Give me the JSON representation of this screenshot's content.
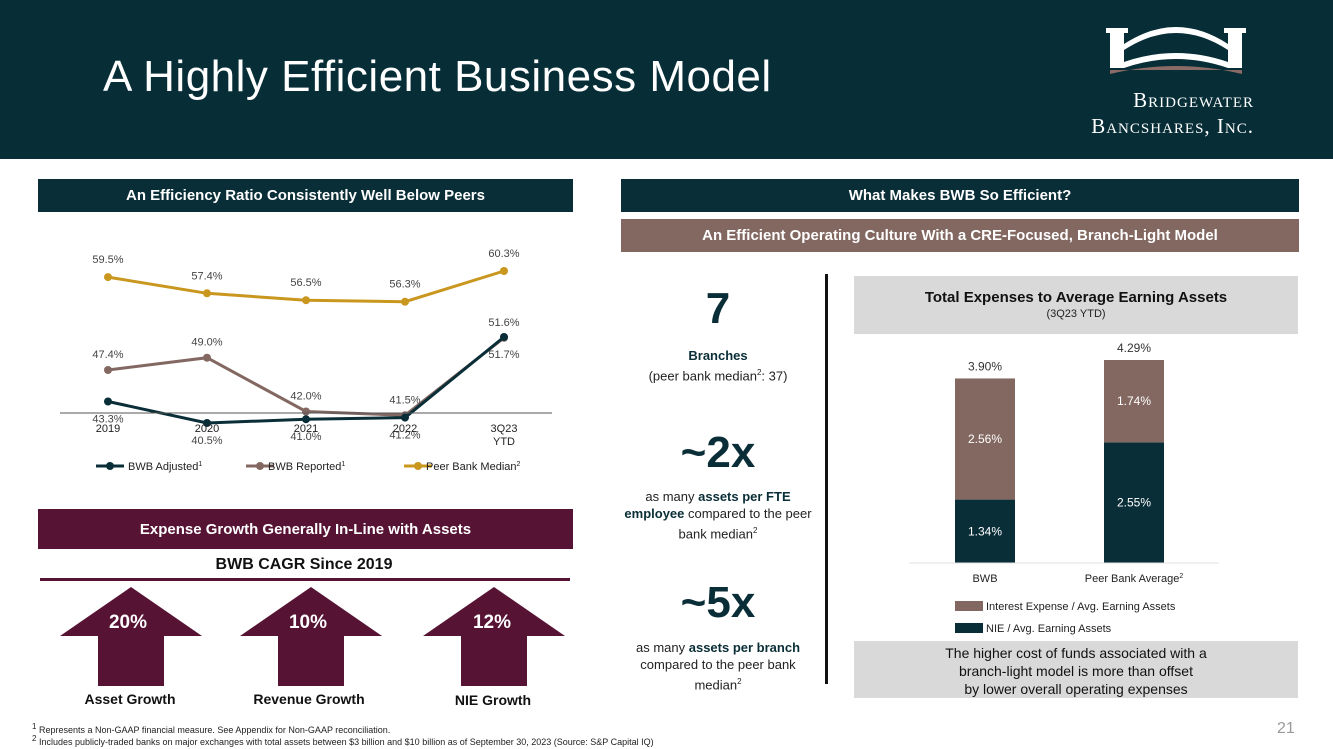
{
  "header": {
    "title": "A Highly Efficient Business Model",
    "logo_line1": "Bridgewater",
    "logo_line2": "Bancshares, Inc."
  },
  "left": {
    "efficiency_banner": "An Efficiency Ratio Consistently Well Below Peers",
    "expense_banner": "Expense Growth Generally In-Line with Assets",
    "cagr_title": "BWB CAGR Since 2019",
    "arrows": [
      {
        "pct": "20%",
        "label": "Asset Growth"
      },
      {
        "pct": "10%",
        "label": "Revenue Growth"
      },
      {
        "pct": "12%",
        "label": "NIE Growth"
      }
    ]
  },
  "right": {
    "main_banner": "What Makes BWB So Efficient?",
    "sub_banner": "An Efficient Operating Culture With a CRE-Focused, Branch-Light Model",
    "stats": [
      {
        "big": "7",
        "line1_bold": "Branches",
        "line2": "(peer bank median",
        "line2_sup": "2",
        "line2_end": ": 37)"
      },
      {
        "big": "~2x",
        "pre": "as many ",
        "bold": "assets per FTE employee",
        "post": " compared to the peer bank median",
        "sup": "2"
      },
      {
        "big": "~5x",
        "pre": "as many ",
        "bold": "assets per branch",
        "post": " compared to the peer bank median",
        "sup": "2"
      }
    ],
    "note": [
      "The higher cost of funds associated with a",
      "branch-light model is more than offset",
      "by lower overall operating expenses"
    ]
  },
  "footnotes": {
    "f1_sup": "1",
    "f1": " Represents a Non-GAAP financial measure. See Appendix for Non-GAAP reconciliation.",
    "f2_sup": "2",
    "f2": " Includes publicly-traded banks on major exchanges with total assets between $3 billion and $10 billion as of September 30, 2023 (Source: S&P Capital IQ)"
  },
  "page_number": "21",
  "colors": {
    "teal": "#0a2e37",
    "mauve": "#836862",
    "gold": "#c9961e",
    "maroon": "#561334"
  },
  "chart_data": [
    {
      "type": "line",
      "title": "An Efficiency Ratio Consistently Well Below Peers",
      "categories": [
        "2019",
        "2020",
        "2021",
        "2022",
        "3Q23 YTD"
      ],
      "unit": "%",
      "ylim": [
        38,
        62
      ],
      "series": [
        {
          "name": "BWB Adjusted",
          "legend_sup": "1",
          "color": "#0a2e37",
          "values": [
            43.3,
            40.5,
            41.0,
            41.2,
            51.7
          ],
          "labels": [
            "43.3%",
            "40.5%",
            "41.0%",
            "41.2%",
            "51.7%"
          ]
        },
        {
          "name": "BWB Reported",
          "legend_sup": "1",
          "color": "#836862",
          "values": [
            47.4,
            49.0,
            42.0,
            41.5,
            51.6
          ],
          "labels": [
            "47.4%",
            "49.0%",
            "42.0%",
            "41.5%",
            "51.6%"
          ]
        },
        {
          "name": "Peer Bank Median",
          "legend_sup": "2",
          "color": "#c9961e",
          "values": [
            59.5,
            57.4,
            56.5,
            56.3,
            60.3
          ],
          "labels": [
            "59.5%",
            "57.4%",
            "56.5%",
            "56.3%",
            "60.3%"
          ]
        }
      ]
    },
    {
      "type": "bar",
      "stacked": true,
      "title": "Total Expenses to Average Earning Assets",
      "subtitle": "(3Q23 YTD)",
      "categories": [
        "BWB",
        "Peer Bank Average"
      ],
      "category_sups": [
        "",
        "2"
      ],
      "totals": [
        3.9,
        4.29
      ],
      "total_labels": [
        "3.90%",
        "4.29%"
      ],
      "ylim": [
        0,
        4.4
      ],
      "series": [
        {
          "name": "NIE / Avg. Earning Assets",
          "color": "#0a2e37",
          "values": [
            1.34,
            2.55
          ],
          "labels": [
            "1.34%",
            "2.55%"
          ]
        },
        {
          "name": "Interest Expense / Avg. Earning Assets",
          "color": "#836862",
          "values": [
            2.56,
            1.74
          ],
          "labels": [
            "2.56%",
            "1.74%"
          ]
        }
      ]
    }
  ]
}
